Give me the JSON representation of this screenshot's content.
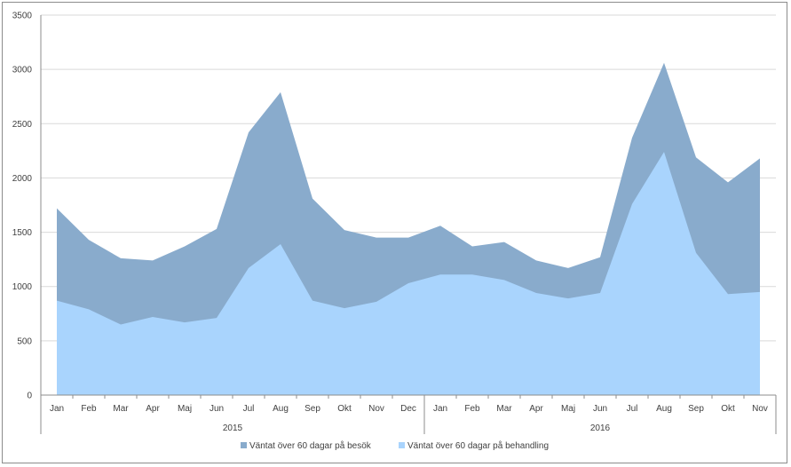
{
  "chart_data": {
    "type": "area",
    "stacked": false,
    "title": "",
    "xlabel": "",
    "ylabel": "",
    "ylim": [
      0,
      3500
    ],
    "yticks": [
      0,
      500,
      1000,
      1500,
      2000,
      2500,
      3000,
      3500
    ],
    "grid": true,
    "legend_position": "bottom",
    "categories": [
      "Jan",
      "Feb",
      "Mar",
      "Apr",
      "Maj",
      "Jun",
      "Jul",
      "Aug",
      "Sep",
      "Okt",
      "Nov",
      "Dec",
      "Jan",
      "Feb",
      "Mar",
      "Apr",
      "Maj",
      "Jun",
      "Jul",
      "Aug",
      "Sep",
      "Okt",
      "Nov"
    ],
    "groups": [
      {
        "label": "2015",
        "count": 12
      },
      {
        "label": "2016",
        "count": 11
      }
    ],
    "series": [
      {
        "name": "Väntat över 60 dagar på besök",
        "color": "#89abcc",
        "values": [
          1720,
          1430,
          1260,
          1240,
          1370,
          1530,
          2420,
          2790,
          1810,
          1520,
          1450,
          1450,
          1560,
          1370,
          1410,
          1240,
          1170,
          1270,
          2370,
          3060,
          2190,
          1960,
          2180
        ]
      },
      {
        "name": "Väntat över 60 dagar på behandling",
        "color": "#a9d4fd",
        "values": [
          870,
          790,
          650,
          720,
          670,
          710,
          1170,
          1390,
          870,
          800,
          860,
          1030,
          1110,
          1110,
          1060,
          940,
          890,
          940,
          1760,
          2240,
          1310,
          930,
          950
        ]
      }
    ]
  }
}
